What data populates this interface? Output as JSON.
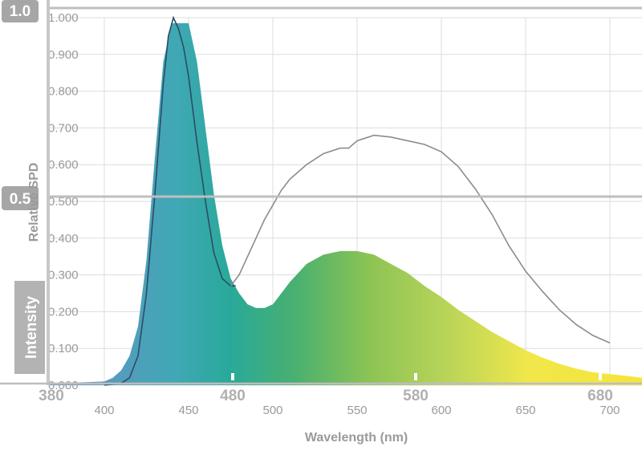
{
  "chart_data": {
    "type": "area",
    "xlabel": "Wavelength (nm)",
    "ylabel": "Relative SPD",
    "xlim": [
      400,
      720
    ],
    "ylim": [
      0,
      1
    ],
    "x_ticks": [
      "400",
      "450",
      "500",
      "550",
      "600",
      "650",
      "700"
    ],
    "y_ticks": [
      "0.000",
      "0.100",
      "0.200",
      "0.300",
      "0.400",
      "0.500",
      "0.600",
      "0.700",
      "0.800",
      "0.900",
      "1.000"
    ],
    "grid": true,
    "series": [
      {
        "style": "filled spectrum gradient",
        "x": [
          400,
          405,
          410,
          415,
          420,
          425,
          430,
          435,
          440,
          445,
          450,
          455,
          460,
          465,
          470,
          475,
          480,
          485,
          490,
          495,
          500,
          510,
          520,
          530,
          540,
          550,
          560,
          570,
          580,
          590,
          600,
          610,
          620,
          630,
          640,
          650,
          660,
          670,
          680,
          690,
          700,
          710,
          720
        ],
        "y": [
          0.01,
          0.02,
          0.04,
          0.08,
          0.16,
          0.34,
          0.62,
          0.88,
          0.985,
          0.985,
          0.985,
          0.88,
          0.7,
          0.52,
          0.38,
          0.29,
          0.25,
          0.22,
          0.21,
          0.21,
          0.22,
          0.28,
          0.33,
          0.355,
          0.365,
          0.365,
          0.355,
          0.33,
          0.305,
          0.27,
          0.24,
          0.205,
          0.175,
          0.145,
          0.12,
          0.095,
          0.075,
          0.058,
          0.045,
          0.035,
          0.03,
          0.025,
          0.02
        ]
      },
      {
        "style": "dark thin line",
        "x": [
          400,
          410,
          415,
          420,
          425,
          430,
          435,
          438,
          441,
          444,
          447,
          450,
          455,
          460,
          465,
          470,
          475,
          478
        ],
        "y": [
          0.0,
          0.005,
          0.02,
          0.08,
          0.25,
          0.52,
          0.82,
          0.95,
          1.0,
          0.97,
          0.92,
          0.84,
          0.66,
          0.5,
          0.36,
          0.29,
          0.27,
          0.27
        ]
      },
      {
        "style": "grey thin line",
        "x": [
          475,
          480,
          485,
          490,
          495,
          500,
          505,
          510,
          520,
          530,
          540,
          545,
          550,
          560,
          570,
          580,
          590,
          600,
          610,
          620,
          630,
          640,
          650,
          660,
          670,
          680,
          690,
          700
        ],
        "y": [
          0.27,
          0.3,
          0.35,
          0.4,
          0.45,
          0.49,
          0.53,
          0.56,
          0.6,
          0.63,
          0.645,
          0.645,
          0.665,
          0.68,
          0.675,
          0.665,
          0.655,
          0.635,
          0.595,
          0.535,
          0.465,
          0.38,
          0.31,
          0.255,
          0.205,
          0.165,
          0.135,
          0.115
        ]
      }
    ]
  },
  "overlay": {
    "top_badge": "1.0",
    "mid_badge": "0.5",
    "intensity_label": "Intensity",
    "nm_labels": [
      "380",
      "480",
      "580",
      "680"
    ]
  },
  "colors": {
    "grid": "#dddddd",
    "tick_text": "#9a9a9a",
    "overlay_badge": "#a6a6a6",
    "overlay_rule": "#bfbfbf",
    "dark_line": "#2d4c66",
    "grey_line": "#8c8c8c",
    "gradient": [
      "#6e8ec9",
      "#3fa8b4",
      "#29a99a",
      "#48b070",
      "#8dc454",
      "#b8d459",
      "#f1e74a",
      "#f4e53b"
    ]
  }
}
